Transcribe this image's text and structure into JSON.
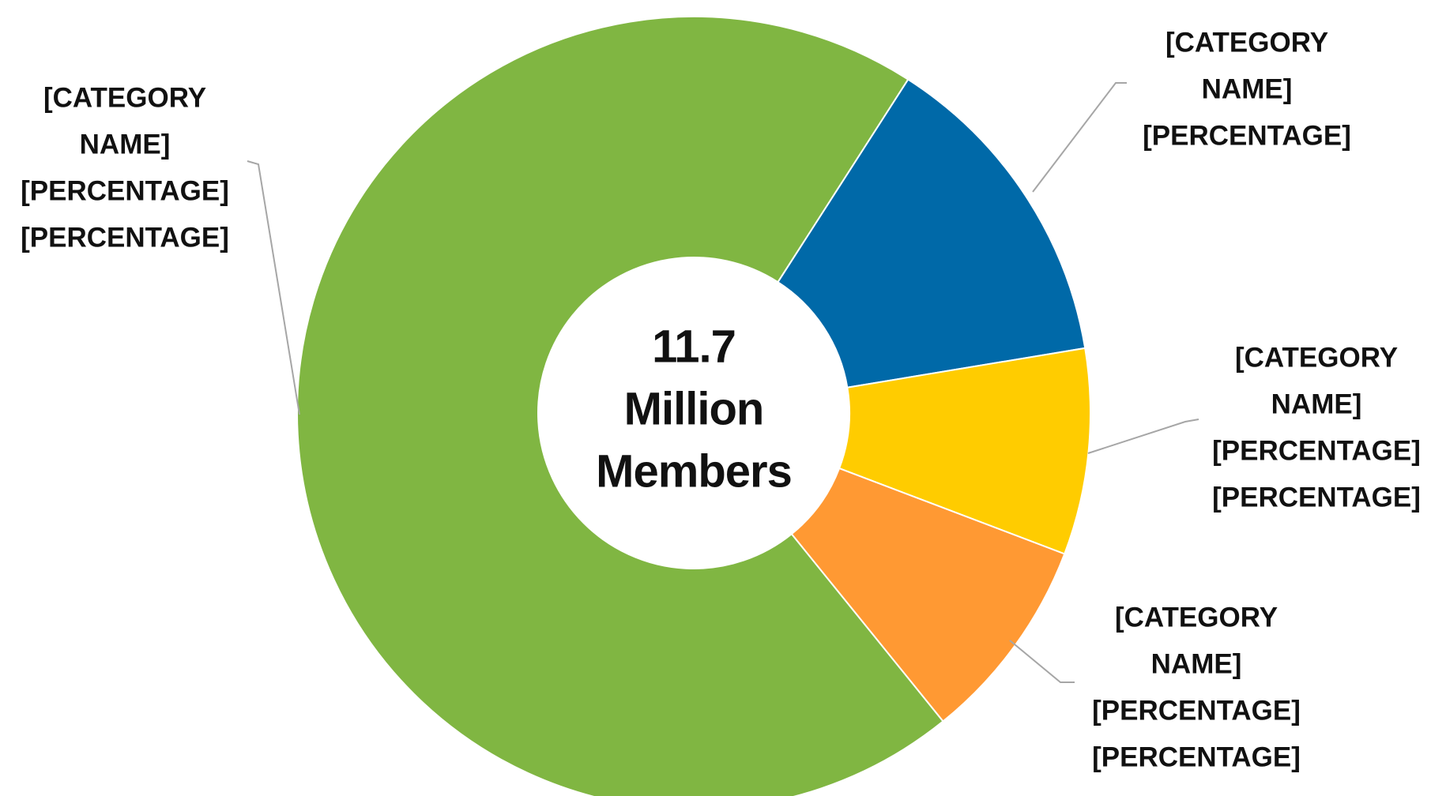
{
  "chart_data": {
    "type": "donut",
    "center_label": [
      "11.7",
      "Million",
      "Members"
    ],
    "values": [
      13.3,
      8.4,
      8.4,
      69.9
    ],
    "colors": [
      "#0069a8",
      "#ffcc00",
      "#ff9933",
      "#80b642"
    ],
    "labels": [
      [
        "[CATEGORY",
        "NAME]",
        "[PERCENTAGE]"
      ],
      [
        "[CATEGORY",
        "NAME]",
        "[PERCENTAGE]",
        "[PERCENTAGE]"
      ],
      [
        "[CATEGORY",
        "NAME]",
        "[PERCENTAGE]",
        "[PERCENTAGE]"
      ],
      [
        "[CATEGORY",
        "NAME]",
        "[PERCENTAGE]",
        "[PERCENTAGE]"
      ]
    ],
    "start_angle": 32.7
  }
}
